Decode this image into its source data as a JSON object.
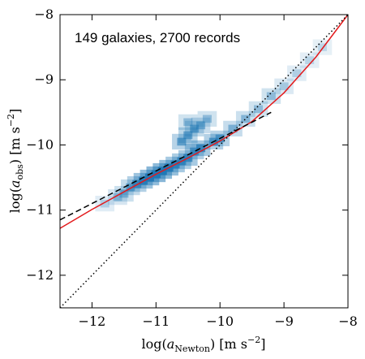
{
  "chart_data": {
    "type": "heatmap",
    "annotation": "149 galaxies, 2700 records",
    "xlabel": {
      "pre": "log(",
      "var": "a",
      "sub": "Newton",
      "post": ") [m s",
      "sup": "−2",
      "end": "]"
    },
    "ylabel": {
      "pre": "log(",
      "var": "a",
      "sub": "obs",
      "post": ") [m s",
      "sup": "−2",
      "end": "]"
    },
    "xlim": [
      -12.5,
      -8
    ],
    "ylim": [
      -12.5,
      -8
    ],
    "x_ticks": [
      -12,
      -11,
      -10,
      -9,
      -8
    ],
    "y_ticks": [
      -12,
      -11,
      -10,
      -9,
      -8
    ],
    "x_tick_labels": [
      "−12",
      "−11",
      "−10",
      "−9",
      "−8"
    ],
    "y_tick_labels": [
      "−12",
      "−11",
      "−10",
      "−9",
      "−8"
    ],
    "colors": {
      "heatmap": "#1f77b4",
      "fit": "#e31a1c",
      "dashed": "#000000",
      "dotted": "#000000"
    },
    "series": [
      {
        "style": "solid-red",
        "x": [
          -12.5,
          -12.0,
          -11.5,
          -11.0,
          -10.5,
          -10.0,
          -9.5,
          -9.0,
          -8.5,
          -8.0
        ],
        "y": [
          -11.28,
          -10.99,
          -10.72,
          -10.45,
          -10.2,
          -9.94,
          -9.64,
          -9.2,
          -8.65,
          -8.0
        ]
      },
      {
        "style": "dashed-black",
        "x": [
          -12.5,
          -12.0,
          -11.5,
          -11.0,
          -10.5,
          -10.0,
          -9.5,
          -9.2
        ],
        "y": [
          -11.15,
          -10.9,
          -10.65,
          -10.4,
          -10.15,
          -9.9,
          -9.65,
          -9.5
        ]
      },
      {
        "style": "dotted-black",
        "x": [
          -12.5,
          -8.0
        ],
        "y": [
          -12.5,
          -8.0
        ]
      }
    ],
    "heatmap_density": [
      {
        "x": -11.0,
        "y": -10.45,
        "w": 1.0
      },
      {
        "x": -10.9,
        "y": -10.4,
        "w": 0.95
      },
      {
        "x": -11.1,
        "y": -10.5,
        "w": 0.9
      },
      {
        "x": -10.8,
        "y": -10.35,
        "w": 0.85
      },
      {
        "x": -11.2,
        "y": -10.55,
        "w": 0.8
      },
      {
        "x": -10.5,
        "y": -10.2,
        "w": 0.7
      },
      {
        "x": -10.3,
        "y": -10.05,
        "w": 0.7
      },
      {
        "x": -10.6,
        "y": -10.25,
        "w": 0.65
      },
      {
        "x": -10.1,
        "y": -9.95,
        "w": 0.6
      },
      {
        "x": -10.0,
        "y": -9.9,
        "w": 0.55
      },
      {
        "x": -10.4,
        "y": -10.1,
        "w": 0.6
      },
      {
        "x": -10.7,
        "y": -10.3,
        "w": 0.7
      },
      {
        "x": -10.6,
        "y": -9.95,
        "w": 0.55
      },
      {
        "x": -10.5,
        "y": -9.85,
        "w": 0.5
      },
      {
        "x": -10.4,
        "y": -9.75,
        "w": 0.45
      },
      {
        "x": -10.3,
        "y": -9.7,
        "w": 0.4
      },
      {
        "x": -10.5,
        "y": -9.65,
        "w": 0.3
      },
      {
        "x": -10.2,
        "y": -9.6,
        "w": 0.3
      },
      {
        "x": -11.3,
        "y": -10.6,
        "w": 0.6
      },
      {
        "x": -11.4,
        "y": -10.65,
        "w": 0.45
      },
      {
        "x": -11.5,
        "y": -10.75,
        "w": 0.35
      },
      {
        "x": -11.6,
        "y": -10.8,
        "w": 0.25
      },
      {
        "x": -11.8,
        "y": -10.9,
        "w": 0.15
      },
      {
        "x": -9.8,
        "y": -9.75,
        "w": 0.4
      },
      {
        "x": -9.6,
        "y": -9.6,
        "w": 0.35
      },
      {
        "x": -9.4,
        "y": -9.45,
        "w": 0.3
      },
      {
        "x": -9.2,
        "y": -9.25,
        "w": 0.3
      },
      {
        "x": -9.0,
        "y": -9.1,
        "w": 0.2
      },
      {
        "x": -8.8,
        "y": -8.9,
        "w": 0.15
      },
      {
        "x": -8.6,
        "y": -8.7,
        "w": 0.12
      },
      {
        "x": -8.4,
        "y": -8.5,
        "w": 0.1
      }
    ]
  }
}
